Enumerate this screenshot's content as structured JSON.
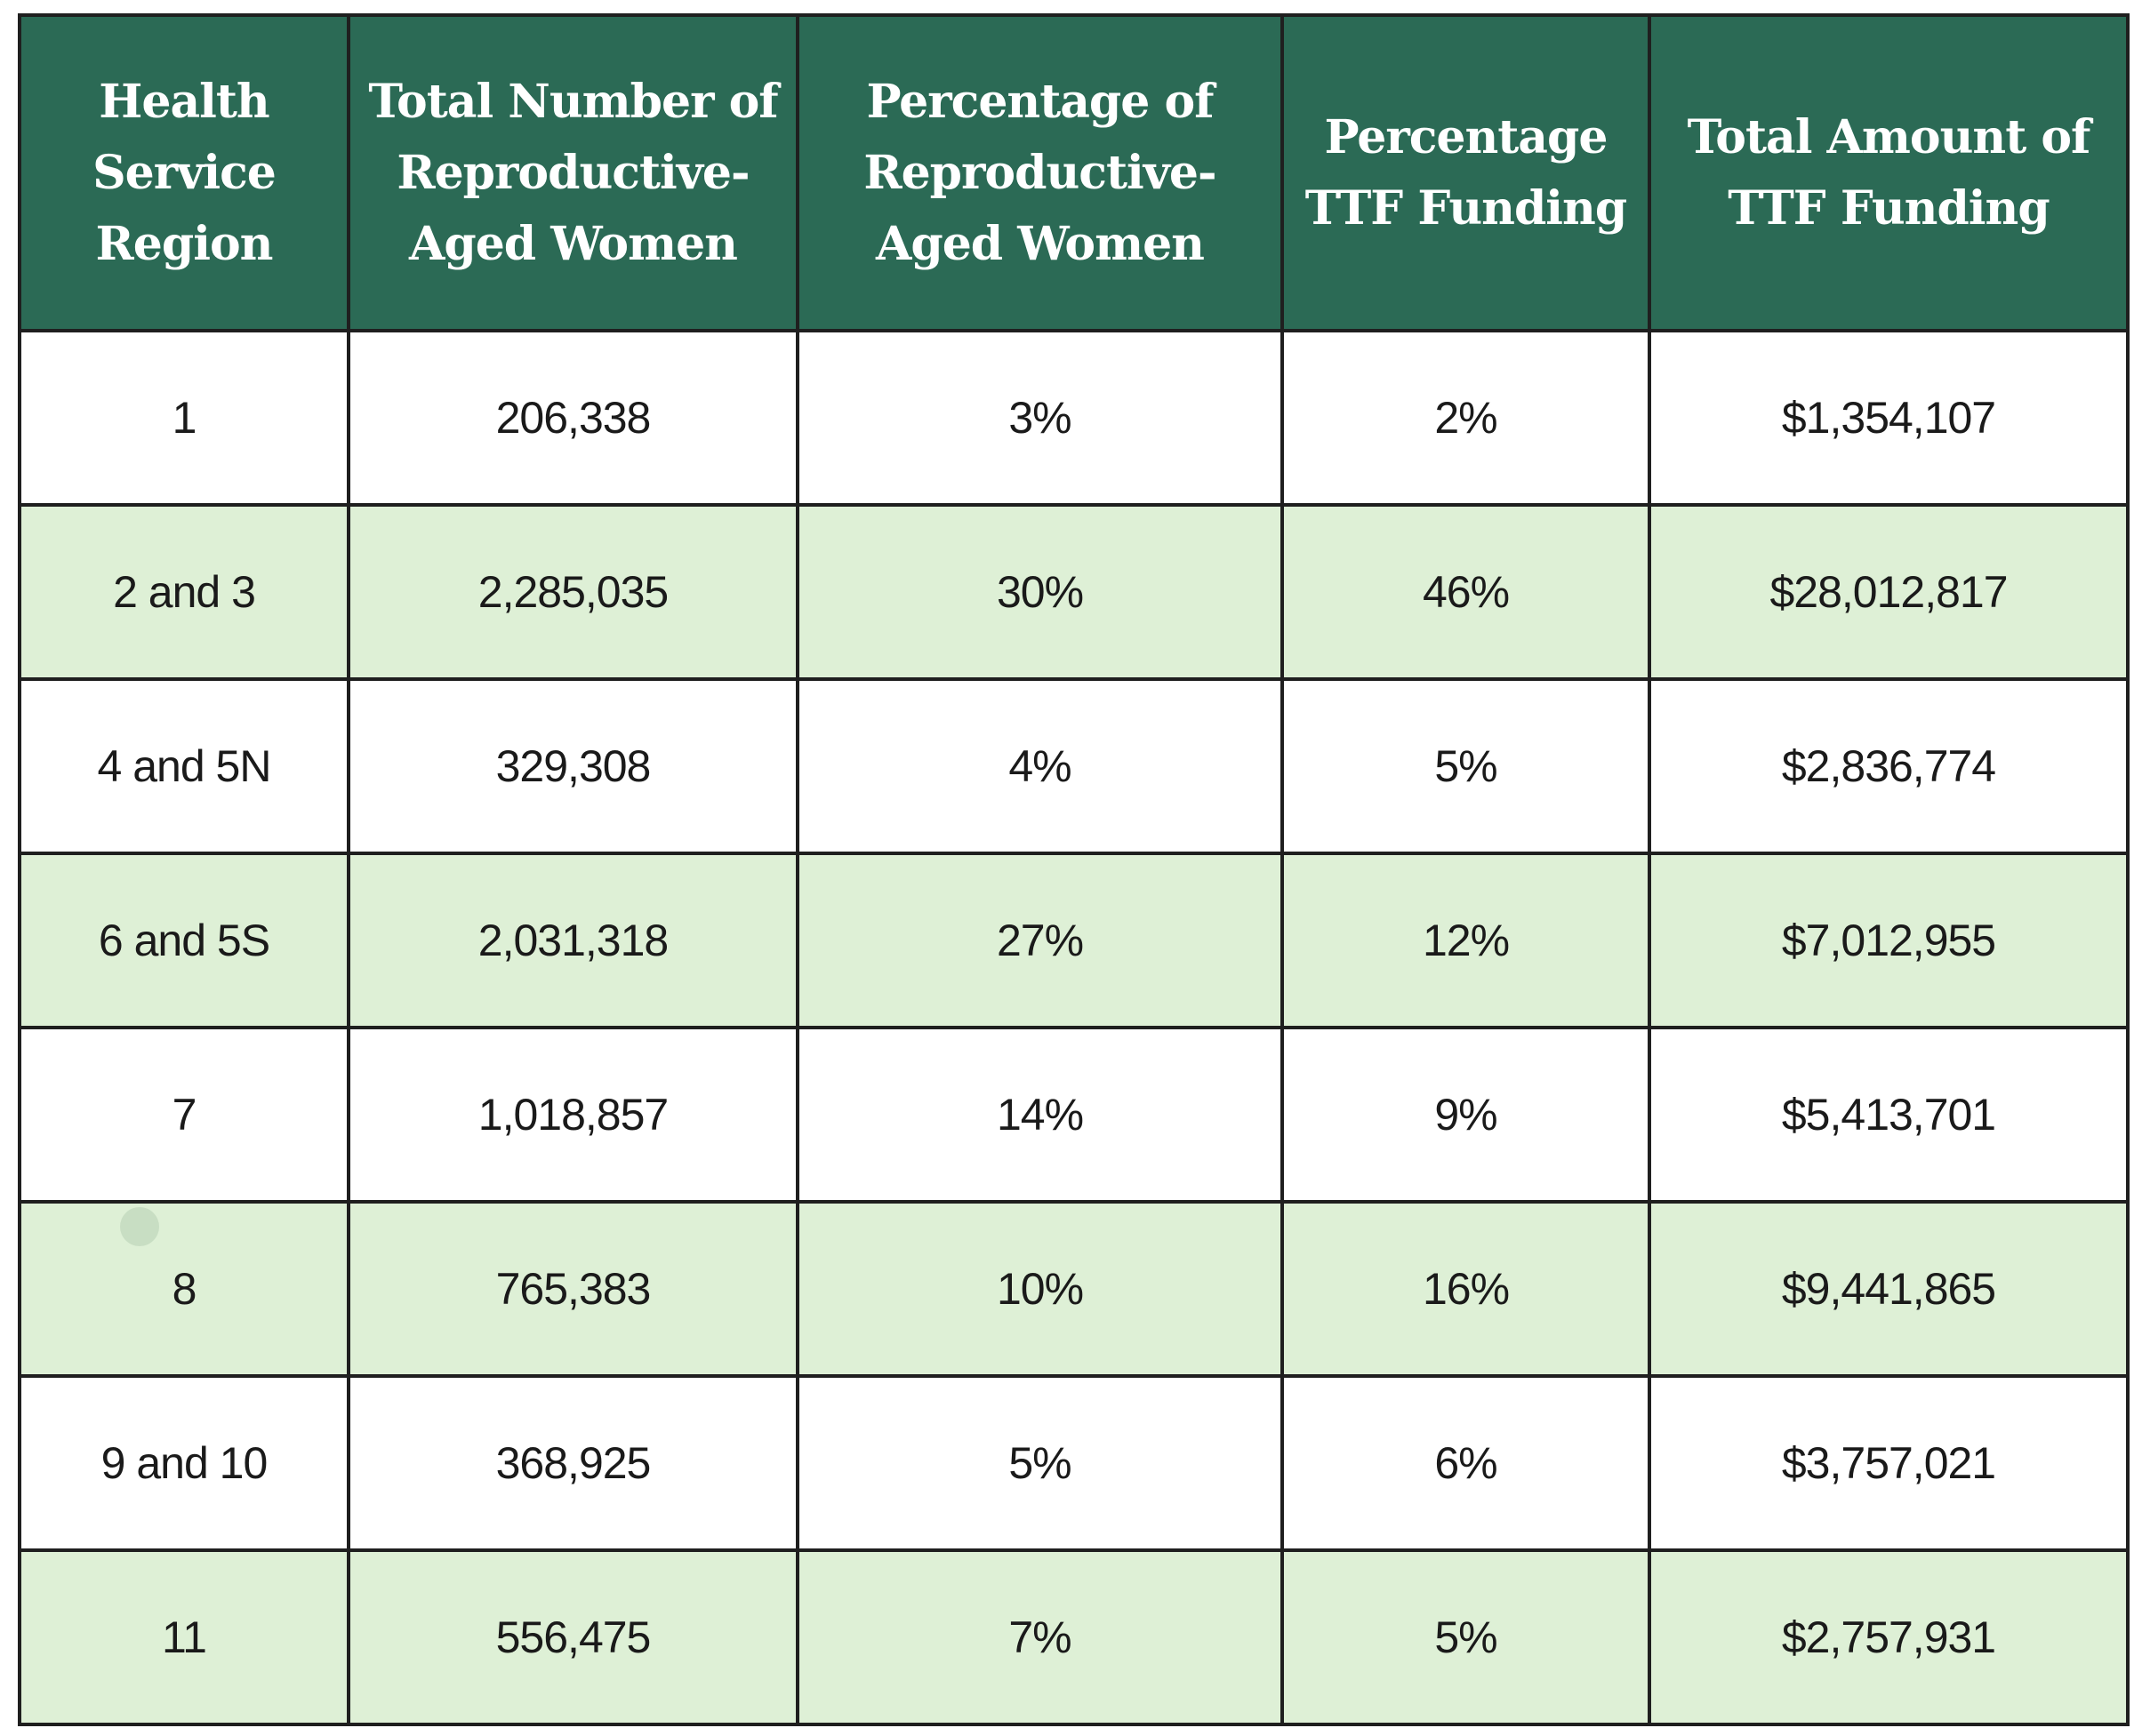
{
  "colors": {
    "header_bg": "#2b6a55",
    "row_a": "#ffffff",
    "row_b": "#def0d6",
    "border": "#1f1f1f"
  },
  "table": {
    "headers": [
      "Health Service Region",
      "Total Number of Reproductive-Aged Women",
      "Percentage of Reproductive-Aged Women",
      "Percentage TTF Funding",
      "Total Amount of TTF Funding"
    ],
    "rows": [
      [
        "1",
        "206,338",
        "3%",
        "2%",
        "$1,354,107"
      ],
      [
        "2 and 3",
        "2,285,035",
        "30%",
        "46%",
        "$28,012,817"
      ],
      [
        "4 and 5N",
        "329,308",
        "4%",
        "5%",
        "$2,836,774"
      ],
      [
        "6 and 5S",
        "2,031,318",
        "27%",
        "12%",
        "$7,012,955"
      ],
      [
        "7",
        "1,018,857",
        "14%",
        "9%",
        "$5,413,701"
      ],
      [
        "8",
        "765,383",
        "10%",
        "16%",
        "$9,441,865"
      ],
      [
        "9 and 10",
        "368,925",
        "5%",
        "6%",
        "$3,757,021"
      ],
      [
        "11",
        "556,475",
        "7%",
        "5%",
        "$2,757,931"
      ]
    ]
  }
}
